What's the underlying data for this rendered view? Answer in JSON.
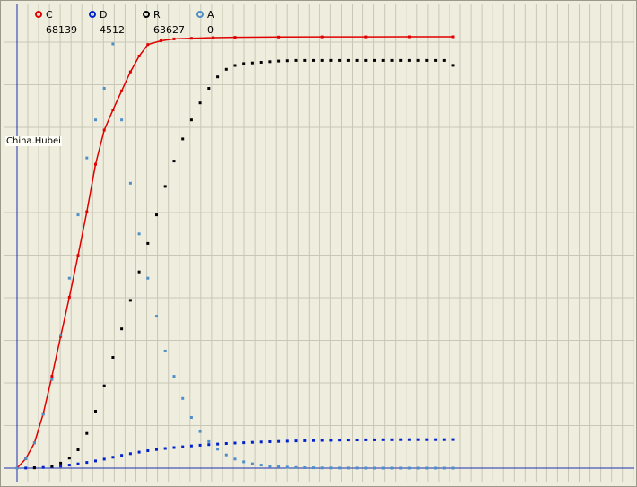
{
  "chart_data": {
    "type": "scatter",
    "title": "",
    "region_label": "China.Hubei",
    "xlabel": "",
    "ylabel": "",
    "x_range": [
      0,
      100
    ],
    "y_range": [
      0,
      68139
    ],
    "grid": true,
    "legend_position": "top-left",
    "series": [
      {
        "name": "C",
        "color": "#e00000",
        "value_label": "68139",
        "line": true,
        "x": [
          0,
          2,
          4,
          6,
          8,
          10,
          12,
          14,
          16,
          18,
          20,
          22,
          24,
          26,
          28,
          30,
          33,
          36,
          40,
          45,
          50,
          60,
          70,
          80,
          90,
          100
        ],
        "y": [
          0,
          1500,
          4000,
          8600,
          14500,
          20800,
          27000,
          33600,
          40500,
          48000,
          53400,
          56600,
          59600,
          62600,
          65100,
          66900,
          67500,
          67800,
          67900,
          68000,
          68050,
          68100,
          68120,
          68130,
          68135,
          68139
        ]
      },
      {
        "name": "D",
        "color": "#0022cc",
        "value_label": "4512",
        "line": false,
        "x": [
          0,
          2,
          4,
          6,
          8,
          10,
          12,
          14,
          16,
          18,
          20,
          22,
          24,
          26,
          28,
          30,
          32,
          34,
          36,
          38,
          40,
          42,
          44,
          46,
          48,
          50,
          52,
          54,
          56,
          58,
          60,
          62,
          64,
          66,
          68,
          70,
          72,
          74,
          76,
          78,
          80,
          82,
          84,
          86,
          88,
          90,
          92,
          94,
          96,
          98,
          100
        ],
        "y": [
          0,
          18,
          50,
          110,
          200,
          320,
          480,
          680,
          900,
          1150,
          1430,
          1730,
          2020,
          2290,
          2530,
          2760,
          2950,
          3110,
          3260,
          3390,
          3510,
          3620,
          3720,
          3810,
          3890,
          3960,
          4020,
          4080,
          4130,
          4180,
          4220,
          4260,
          4300,
          4330,
          4360,
          4390,
          4410,
          4430,
          4450,
          4460,
          4470,
          4480,
          4490,
          4495,
          4500,
          4503,
          4506,
          4508,
          4510,
          4511,
          4512
        ]
      },
      {
        "name": "R",
        "color": "#000000",
        "value_label": "63627",
        "line": false,
        "x": [
          0,
          4,
          8,
          10,
          12,
          14,
          16,
          18,
          20,
          22,
          24,
          26,
          28,
          30,
          32,
          34,
          36,
          38,
          40,
          42,
          44,
          46,
          48,
          50,
          52,
          54,
          56,
          58,
          60,
          62,
          64,
          66,
          68,
          70,
          72,
          74,
          76,
          78,
          80,
          82,
          84,
          86,
          88,
          90,
          92,
          94,
          96,
          98,
          100
        ],
        "y": [
          0,
          50,
          300,
          800,
          1600,
          2900,
          5500,
          9000,
          13000,
          17500,
          22000,
          26500,
          31000,
          35500,
          40000,
          44500,
          48500,
          52000,
          55000,
          57700,
          60000,
          61800,
          63000,
          63600,
          63900,
          64000,
          64100,
          64200,
          64300,
          64350,
          64400,
          64400,
          64400,
          64400,
          64400,
          64400,
          64400,
          64400,
          64400,
          64400,
          64400,
          64400,
          64400,
          64400,
          64400,
          64400,
          64400,
          64400,
          63627
        ]
      },
      {
        "name": "A",
        "color": "#4f8fc8",
        "value_label": "0",
        "line": false,
        "x": [
          0,
          2,
          4,
          6,
          8,
          10,
          12,
          14,
          16,
          18,
          20,
          22,
          24,
          26,
          28,
          30,
          32,
          34,
          36,
          38,
          40,
          42,
          44,
          46,
          48,
          50,
          52,
          54,
          56,
          58,
          60,
          62,
          64,
          66,
          68,
          70,
          72,
          74,
          76,
          78,
          80,
          82,
          84,
          86,
          88,
          90,
          92,
          94,
          96,
          98,
          100
        ],
        "y": [
          0,
          1500,
          4000,
          8500,
          14000,
          21000,
          30000,
          40000,
          49000,
          55000,
          60000,
          67000,
          55000,
          45000,
          37000,
          30000,
          24000,
          18500,
          14500,
          11000,
          8000,
          5800,
          4200,
          3000,
          2100,
          1450,
          1000,
          700,
          480,
          330,
          220,
          150,
          100,
          70,
          50,
          35,
          25,
          18,
          12,
          8,
          5,
          3,
          2,
          1,
          1,
          0,
          0,
          0,
          0,
          0,
          0
        ]
      }
    ]
  }
}
